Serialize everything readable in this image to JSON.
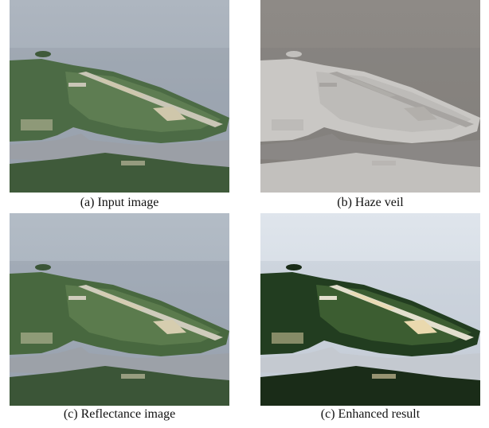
{
  "figure": {
    "panels": [
      {
        "caption": "(a) Input image",
        "palette": {
          "sky": "#aeb6c0",
          "sky2": "#9aa4b0",
          "water": "#8f97a2",
          "land": "#4c6b45",
          "land2": "#5e7d52",
          "strip": "#c9c6b6",
          "sand": "#cfc7ab",
          "river": "#9b9fa6",
          "forest": "#3f5a3a"
        }
      },
      {
        "caption": "(b) Haze veil",
        "palette": {
          "sky": "#8e8a86",
          "sky2": "#85827e",
          "water": "#7f7c79",
          "land": "#c9c7c4",
          "land2": "#bdbbb8",
          "strip": "#a7a4a1",
          "sand": "#b2afab",
          "river": "#8a8785",
          "forest": "#c2c0bd"
        }
      },
      {
        "caption": "(c) Reflectance image",
        "palette": {
          "sky": "#b3bcc6",
          "sky2": "#9ea8b4",
          "water": "#8d96a2",
          "land": "#48683f",
          "land2": "#5b7b4d",
          "strip": "#cfccbc",
          "sand": "#d6cdaf",
          "river": "#9ca1a8",
          "forest": "#3b5537"
        }
      },
      {
        "caption": "(c) Enhanced result",
        "palette": {
          "sky": "#dfe5ec",
          "sky2": "#c9d1db",
          "water": "#b7bfca",
          "land": "#223d20",
          "land2": "#3c5d31",
          "strip": "#e3dfce",
          "sand": "#ead9ae",
          "river": "#c4c9d0",
          "forest": "#1a2c18"
        }
      }
    ]
  }
}
